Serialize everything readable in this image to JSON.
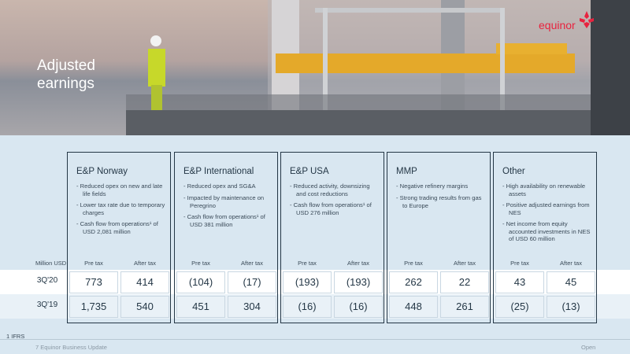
{
  "header": {
    "title": "Adjusted earnings",
    "logo": "equinor"
  },
  "table": {
    "unit": "Million USD",
    "columns": [
      "Pre tax",
      "After tax"
    ],
    "rows": [
      "3Q'20",
      "3Q'19"
    ]
  },
  "segments": [
    {
      "name": "E&P Norway",
      "bullets": [
        "Reduced opex on new and late life fields",
        "Lower tax rate due to temporary charges",
        "Cash flow from operations¹ of USD 2,081 million"
      ],
      "values": [
        [
          "773",
          "414"
        ],
        [
          "1,735",
          "540"
        ]
      ]
    },
    {
      "name": "E&P International",
      "bullets": [
        "Reduced opex and SG&A",
        "Impacted by maintenance on Peregrino",
        "Cash flow from operations¹ of USD 381 million"
      ],
      "values": [
        [
          "(104)",
          "(17)"
        ],
        [
          "451",
          "304"
        ]
      ]
    },
    {
      "name": "E&P USA",
      "bullets": [
        "Reduced activity, downsizing and cost reductions",
        "Cash flow from operations¹ of USD 276 million"
      ],
      "values": [
        [
          "(193)",
          "(193)"
        ],
        [
          "(16)",
          "(16)"
        ]
      ]
    },
    {
      "name": "MMP",
      "bullets": [
        "Negative refinery margins",
        "Strong trading results from gas to Europe"
      ],
      "values": [
        [
          "262",
          "22"
        ],
        [
          "448",
          "261"
        ]
      ]
    },
    {
      "name": "Other",
      "bullets": [
        "High availability on renewable assets",
        "Positive adjusted earnings from NES",
        "Net income from equity accounted investments in NES of USD 60 million"
      ],
      "values": [
        [
          "43",
          "45"
        ],
        [
          "(25)",
          "(13)"
        ]
      ]
    }
  ],
  "footnote": "1 IFRS",
  "footer": {
    "page": "7 Equinor Business Update",
    "classification": "Open"
  }
}
